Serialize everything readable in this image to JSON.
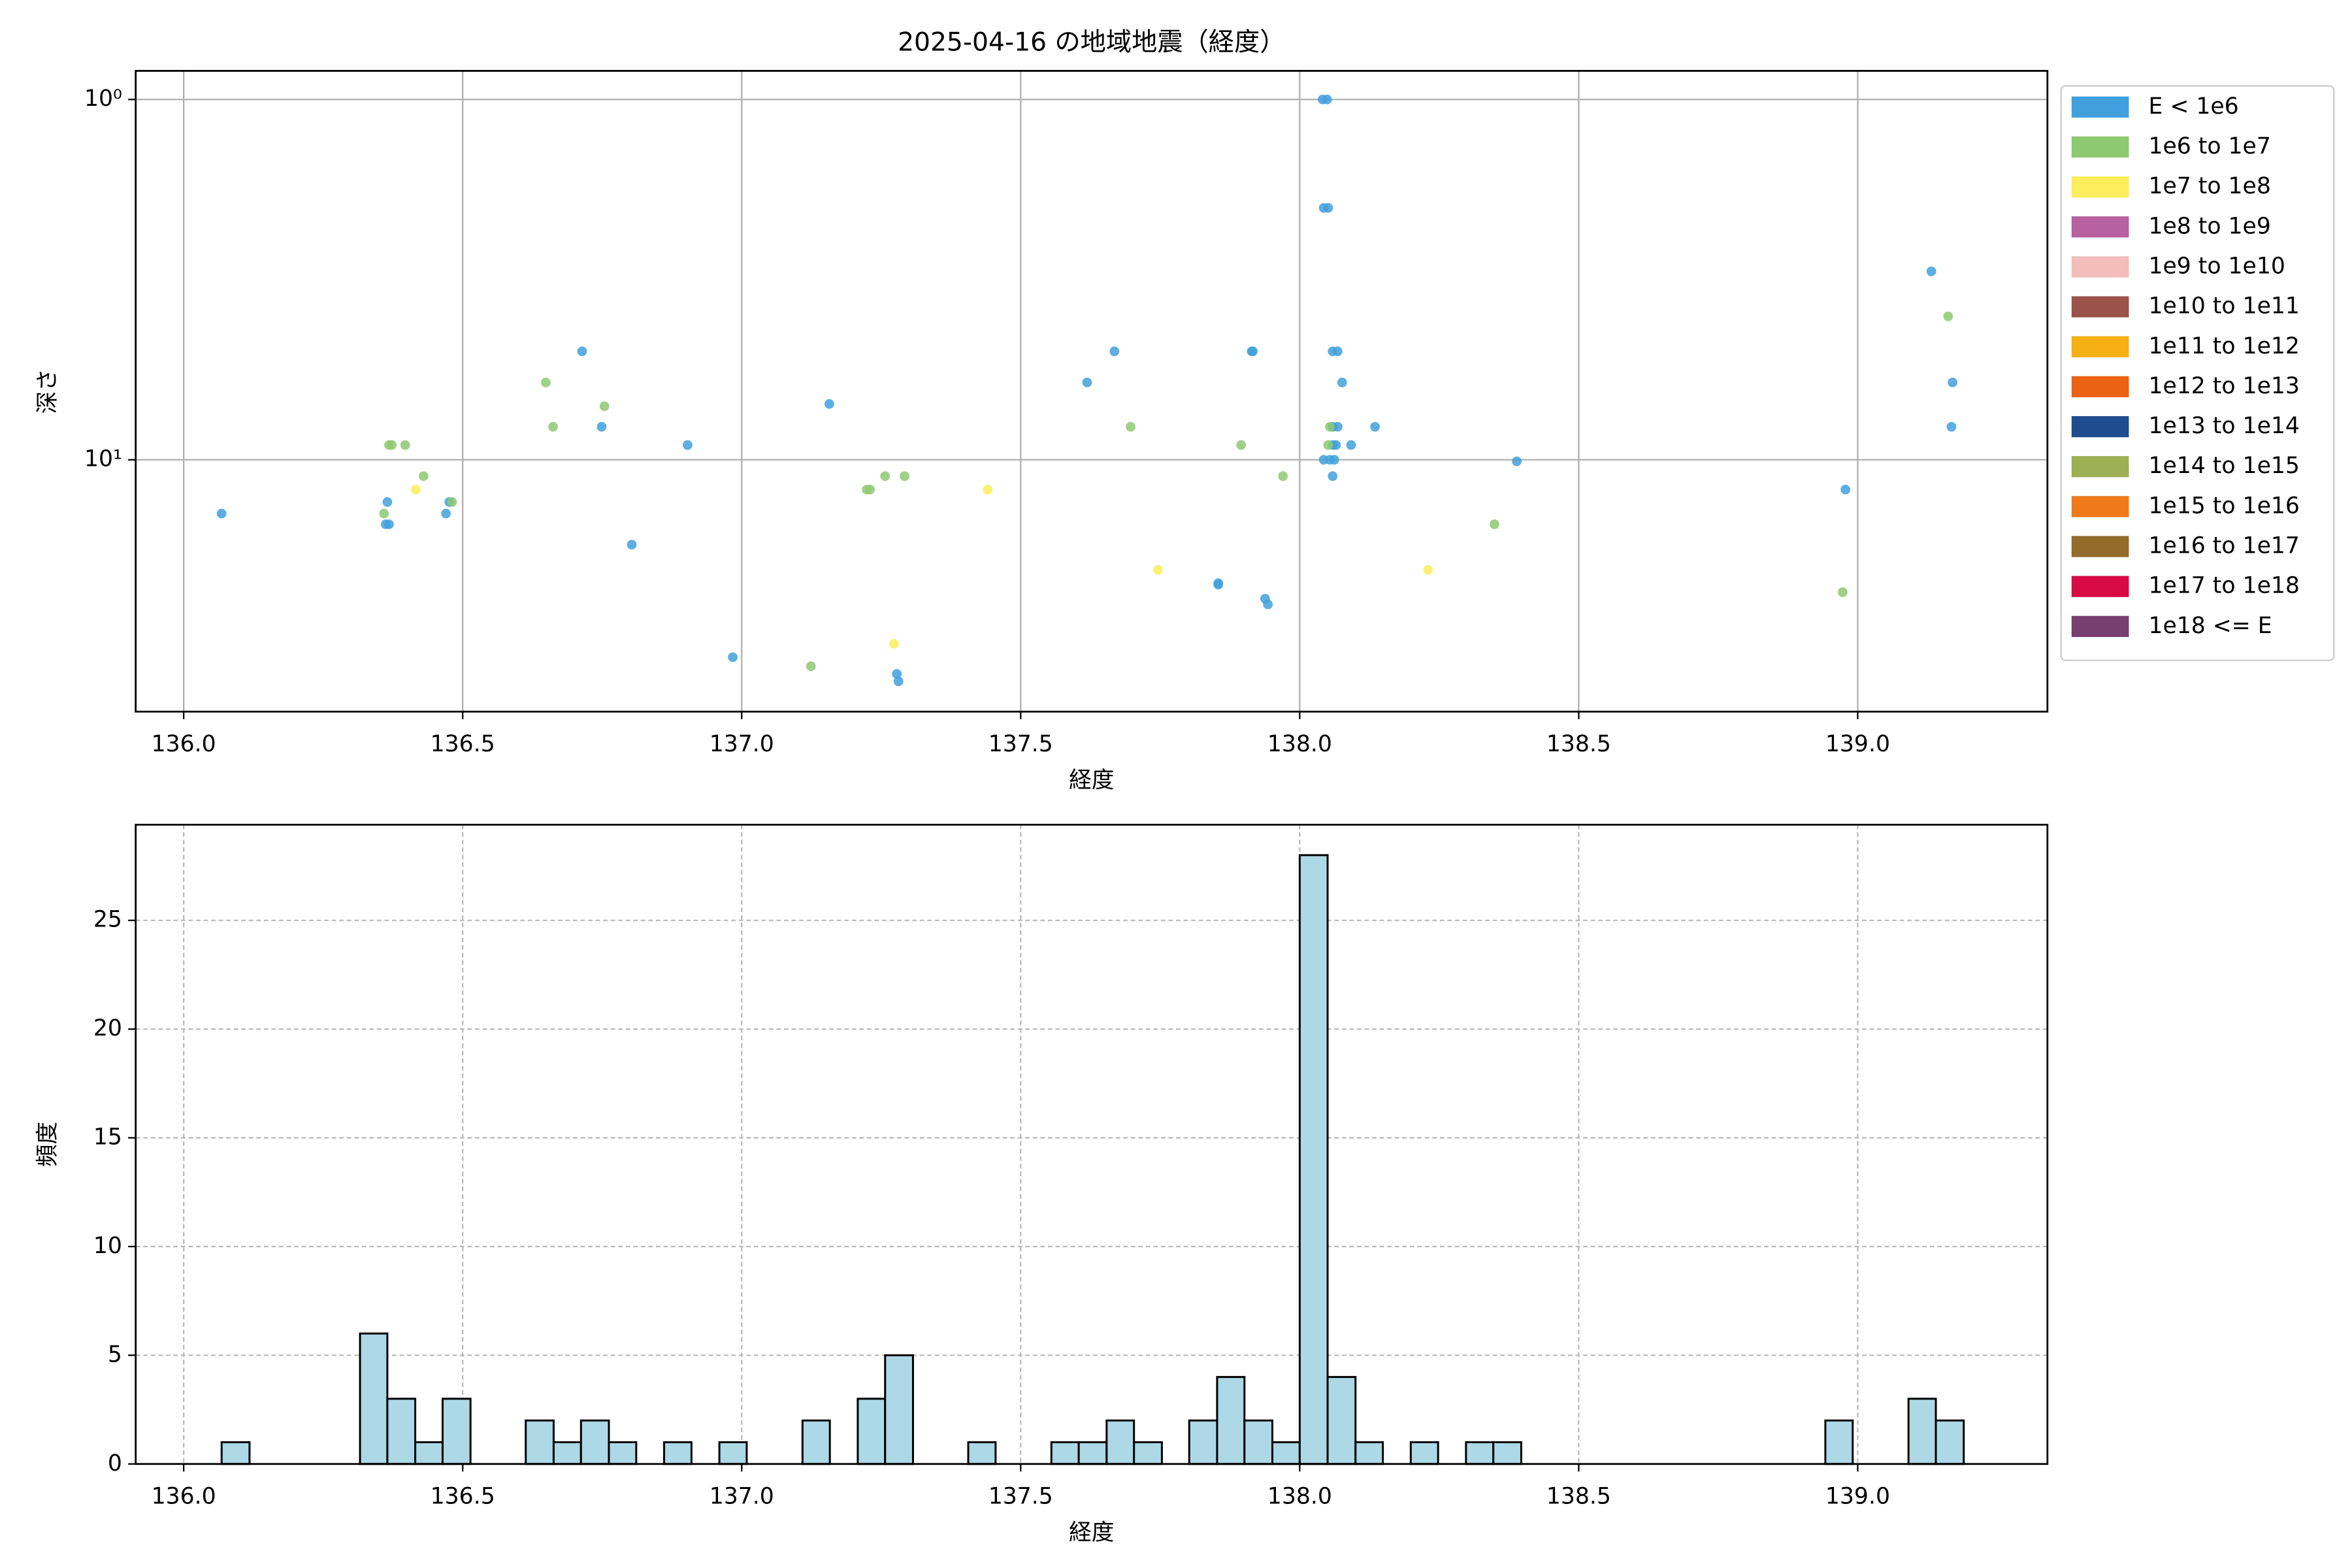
{
  "chart_data": [
    {
      "type": "scatter",
      "title": "2025-04-16 の地域地震（経度）",
      "xlabel": "経度",
      "ylabel": "深さ",
      "xlim": [
        135.914,
        139.34
      ],
      "ylim": [
        0.833,
        50
      ],
      "yscale": "log",
      "y_inverted": true,
      "grid": true,
      "legend": "outside upper right",
      "xticks": [
        {
          "value": 136,
          "label": "136.0"
        },
        {
          "value": 136.5,
          "label": "136.5"
        },
        {
          "value": 137,
          "label": "137.0"
        },
        {
          "value": 137.5,
          "label": "137.5"
        },
        {
          "value": 138,
          "label": "138.0"
        },
        {
          "value": 138.5,
          "label": "138.5"
        },
        {
          "value": 139,
          "label": "139.0"
        }
      ],
      "yticks": [
        {
          "value": 1,
          "label": "10⁰"
        },
        {
          "value": 10,
          "label": "10¹"
        }
      ],
      "series": [
        {
          "name": "E < 1e6",
          "color": "#41a0dc",
          "x": [
            136.068,
            136.362,
            136.368,
            136.365,
            136.47,
            136.476,
            136.714,
            136.749,
            136.803,
            136.903,
            136.984,
            137.157,
            137.278,
            137.281,
            137.619,
            137.668,
            137.854,
            137.854,
            137.916,
            137.914,
            137.938,
            137.943,
            138.041,
            138.049,
            138.043,
            138.051,
            138.059,
            138.068,
            138.076,
            138.059,
            138.068,
            138.059,
            138.065,
            138.092,
            138.043,
            138.054,
            138.062,
            138.059,
            138.135,
            138.389,
            138.978,
            139.132,
            139.17,
            139.168
          ],
          "y": [
            14.1,
            15.1,
            15.1,
            13.1,
            14.1,
            13.1,
            5.0,
            8.1,
            17.2,
            9.1,
            35.3,
            7.0,
            39.3,
            41.2,
            6.1,
            5.0,
            22.2,
            22.0,
            5.0,
            5.0,
            24.3,
            25.2,
            1.0,
            1.0,
            2.0,
            2.0,
            5.0,
            5.0,
            6.1,
            8.1,
            8.1,
            9.1,
            9.1,
            9.1,
            10.0,
            10.0,
            10.0,
            11.1,
            8.1,
            10.1,
            12.1,
            3.0,
            6.1,
            8.1
          ]
        },
        {
          "name": "1e6 to 1e7",
          "color": "#8dc971",
          "x": [
            136.368,
            136.373,
            136.397,
            136.359,
            136.43,
            136.481,
            136.649,
            136.662,
            136.754,
            137.124,
            137.224,
            137.23,
            137.257,
            137.292,
            137.697,
            137.895,
            137.97,
            138.054,
            138.051,
            138.349,
            138.973,
            139.162
          ],
          "y": [
            9.1,
            9.1,
            9.1,
            14.1,
            11.1,
            13.1,
            6.1,
            8.1,
            7.1,
            37.4,
            12.1,
            12.1,
            11.1,
            11.1,
            8.1,
            9.1,
            11.1,
            8.1,
            9.1,
            15.1,
            23.3,
            4.0
          ]
        },
        {
          "name": "1e7 to 1e8",
          "color": "#fbed5b",
          "x": [
            136.416,
            137.441,
            137.273,
            137.746,
            138.23
          ],
          "y": [
            12.1,
            12.1,
            32.4,
            20.2,
            20.2
          ]
        },
        {
          "name": "1e8 to 1e9",
          "color": "#b761a1",
          "x": [],
          "y": []
        },
        {
          "name": "1e9 to 1e10",
          "color": "#f3bdb9",
          "x": [],
          "y": []
        },
        {
          "name": "1e10 to 1e11",
          "color": "#9b5249",
          "x": [],
          "y": []
        },
        {
          "name": "1e11 to 1e12",
          "color": "#f5b013",
          "x": [],
          "y": []
        },
        {
          "name": "1e12 to 1e13",
          "color": "#eb6312",
          "x": [],
          "y": []
        },
        {
          "name": "1e13 to 1e14",
          "color": "#1f4b8f",
          "x": [],
          "y": []
        },
        {
          "name": "1e14 to 1e15",
          "color": "#9eae52",
          "x": [],
          "y": []
        },
        {
          "name": "1e15 to 1e16",
          "color": "#ef7a1b",
          "x": [],
          "y": []
        },
        {
          "name": "1e16 to 1e17",
          "color": "#946b2a",
          "x": [],
          "y": []
        },
        {
          "name": "1e17 to 1e18",
          "color": "#d80a45",
          "x": [],
          "y": []
        },
        {
          "name": "1e18 <= E",
          "color": "#773f6f",
          "x": [],
          "y": []
        }
      ]
    },
    {
      "type": "histogram",
      "xlabel": "経度",
      "ylabel": "頻度",
      "color": "#add8e6",
      "edgecolor": "#000000",
      "xlim": [
        135.914,
        139.34
      ],
      "ylim": [
        0,
        29.4
      ],
      "grid": true,
      "grid_style": "dashed",
      "xticks": [
        {
          "value": 136,
          "label": "136.0"
        },
        {
          "value": 136.5,
          "label": "136.5"
        },
        {
          "value": 137,
          "label": "137.0"
        },
        {
          "value": 137.5,
          "label": "137.5"
        },
        {
          "value": 138,
          "label": "138.0"
        },
        {
          "value": 138.5,
          "label": "138.5"
        },
        {
          "value": 139,
          "label": "139.0"
        }
      ],
      "yticks": [
        0,
        5,
        10,
        15,
        20,
        25
      ],
      "bins": [
        136.068,
        136.118,
        136.167,
        136.217,
        136.266,
        136.316,
        136.365,
        136.415,
        136.464,
        136.514,
        136.564,
        136.613,
        136.663,
        136.712,
        136.762,
        136.811,
        136.861,
        136.91,
        136.96,
        137.009,
        137.059,
        137.109,
        137.158,
        137.208,
        137.257,
        137.307,
        137.356,
        137.406,
        137.455,
        137.505,
        137.555,
        137.604,
        137.654,
        137.703,
        137.753,
        137.802,
        137.852,
        137.901,
        137.951,
        138.0,
        138.05,
        138.1,
        138.149,
        138.199,
        138.248,
        138.298,
        138.347,
        138.397,
        138.446,
        138.496,
        138.546,
        138.595,
        138.645,
        138.694,
        138.744,
        138.793,
        138.843,
        138.892,
        138.942,
        138.991,
        139.041,
        139.091,
        139.14,
        139.19
      ],
      "counts": [
        1,
        0,
        0,
        0,
        0,
        6,
        3,
        1,
        3,
        0,
        0,
        2,
        1,
        2,
        1,
        0,
        1,
        0,
        1,
        0,
        0,
        2,
        0,
        3,
        5,
        0,
        0,
        1,
        0,
        0,
        1,
        1,
        2,
        1,
        0,
        2,
        4,
        2,
        1,
        28,
        4,
        1,
        0,
        1,
        0,
        1,
        1,
        0,
        0,
        0,
        0,
        0,
        0,
        0,
        0,
        0,
        0,
        0,
        2,
        0,
        0,
        3,
        2
      ]
    }
  ]
}
